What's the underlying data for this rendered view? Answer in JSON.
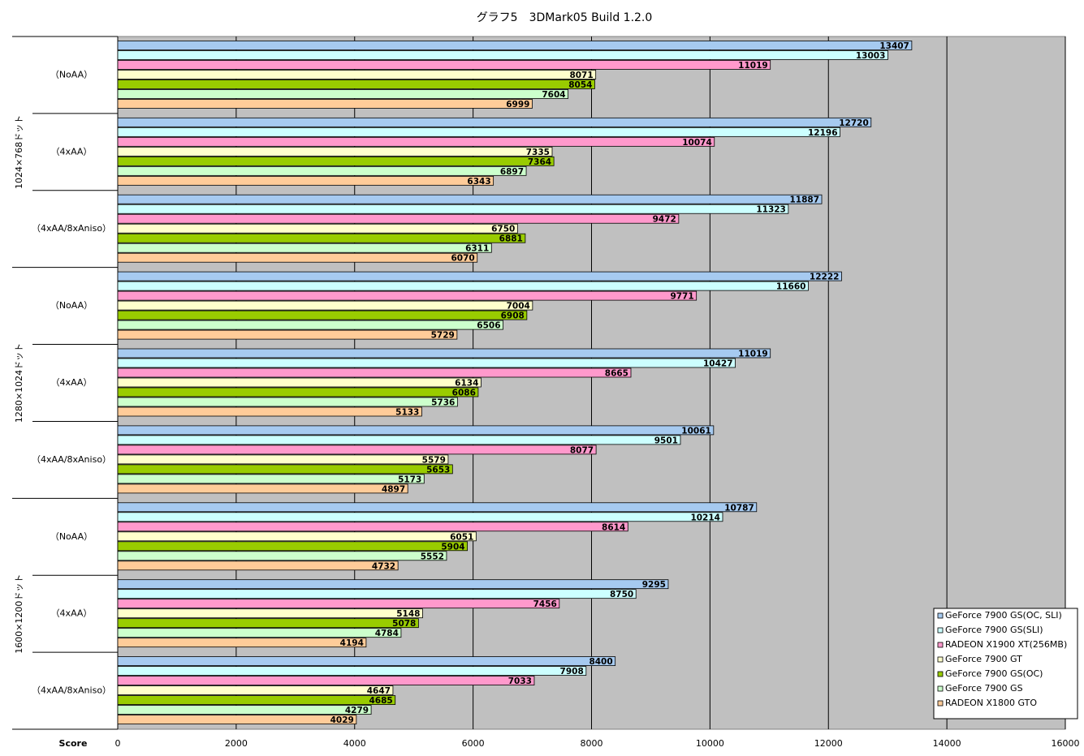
{
  "chart_data": {
    "type": "hbar",
    "title": "グラフ5　3DMark05 Build 1.2.0",
    "x_label": "Score",
    "groups": [
      "1024×768ドット",
      "1280×1024ドット",
      "1600×1200ドット"
    ],
    "categories": [
      "（NoAA）",
      "（4xAA）",
      "（4xAA/8xAniso）",
      "（NoAA）",
      "（4xAA）",
      "（4xAA/8xAniso）",
      "（NoAA）",
      "（4xAA）",
      "（4xAA/8xAniso）"
    ],
    "series": [
      {
        "name": "GeForce 7900 GS(OC, SLI)",
        "color": "#a6caf0",
        "values": [
          13407,
          12720,
          11887,
          12222,
          11019,
          10061,
          10787,
          9295,
          8400
        ]
      },
      {
        "name": "GeForce 7900 GS(SLI)",
        "color": "#ccffff",
        "values": [
          13003,
          12196,
          11323,
          11660,
          10427,
          9501,
          10214,
          8750,
          7908
        ]
      },
      {
        "name": "RADEON X1900 XT(256MB)",
        "color": "#ff99cc",
        "values": [
          11019,
          10074,
          9472,
          9771,
          8665,
          8077,
          8614,
          7456,
          7033
        ]
      },
      {
        "name": "GeForce 7900 GT",
        "color": "#ffffcc",
        "values": [
          8071,
          7335,
          6750,
          7004,
          6134,
          5579,
          6051,
          5148,
          4647
        ]
      },
      {
        "name": "GeForce 7900 GS(OC)",
        "color": "#99cc00",
        "values": [
          8054,
          7364,
          6881,
          6908,
          6086,
          5653,
          5904,
          5078,
          4685
        ]
      },
      {
        "name": "GeForce 7900 GS",
        "color": "#ccffcc",
        "values": [
          7604,
          6897,
          6311,
          6506,
          5736,
          5173,
          5552,
          4784,
          4279
        ]
      },
      {
        "name": "RADEON X1800 GTO",
        "color": "#ffcc99",
        "values": [
          6999,
          6343,
          6070,
          5729,
          5133,
          4897,
          4732,
          4194,
          4029
        ]
      }
    ],
    "xlim": [
      0,
      16000
    ],
    "xticks": [
      0,
      2000,
      4000,
      6000,
      8000,
      10000,
      12000,
      14000,
      16000
    ],
    "grid": true,
    "legend": "bottom-right",
    "plot_background": "#c0c0c0"
  }
}
